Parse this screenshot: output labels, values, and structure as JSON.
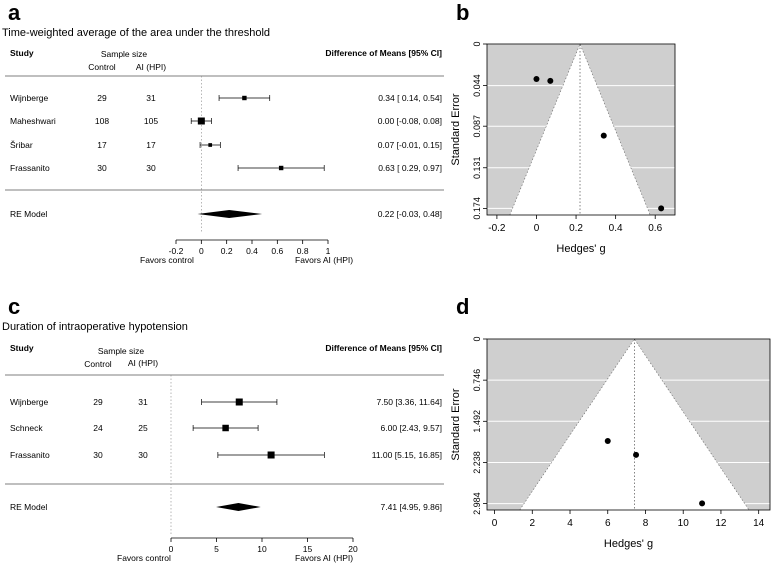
{
  "chart_data": [
    {
      "panel_label": "a",
      "type": "forest",
      "title": "Time-weighted average of the area under the threshold",
      "headers": {
        "study": "Study",
        "sample_size": "Sample size",
        "control": "Control",
        "ai": "AI (HPI)",
        "effect": "Difference of Means [95% CI]"
      },
      "studies": [
        {
          "name": "Wijnberge",
          "control": "29",
          "ai": "31",
          "estimate": 0.34,
          "lower": 0.14,
          "upper": 0.54,
          "ci_text": "0.34 [ 0.14, 0.54]"
        },
        {
          "name": "Maheshwari",
          "control": "108",
          "ai": "105",
          "estimate": 0.0,
          "lower": -0.08,
          "upper": 0.08,
          "ci_text": "0.00 [-0.08, 0.08]"
        },
        {
          "name": "Šribar",
          "control": "17",
          "ai": "17",
          "estimate": 0.07,
          "lower": -0.01,
          "upper": 0.15,
          "ci_text": "0.07 [-0.01, 0.15]"
        },
        {
          "name": "Frassanito",
          "control": "30",
          "ai": "30",
          "estimate": 0.63,
          "lower": 0.29,
          "upper": 0.97,
          "ci_text": "0.63 [ 0.29, 0.97]"
        }
      ],
      "re_model": {
        "name": "RE Model",
        "estimate": 0.22,
        "lower": -0.03,
        "upper": 0.48,
        "ci_text": "0.22 [-0.03, 0.48]"
      },
      "xlim": [
        -0.2,
        1.0
      ],
      "ticks": [
        "-0.2",
        "0",
        "0.2",
        "0.4",
        "0.6",
        "0.8",
        "1"
      ],
      "favors_left": "Favors control",
      "favors_right": "Favors AI (HPI)"
    },
    {
      "panel_label": "b",
      "type": "funnel",
      "xlabel": "Hedges' g",
      "ylabel": "Standard Error",
      "center": 0.22,
      "xlim": [
        -0.25,
        0.7
      ],
      "ylim": [
        0,
        0.181
      ],
      "x_ticks": [
        -0.2,
        0,
        0.2,
        0.4,
        0.6
      ],
      "y_ticks": [
        0,
        0.044,
        0.087,
        0.131,
        0.174
      ],
      "y_tick_labels": [
        "0",
        "0.044",
        "0.087",
        "0.131",
        "0.174"
      ],
      "points": [
        {
          "x": 0.0,
          "y": 0.037
        },
        {
          "x": 0.07,
          "y": 0.039
        },
        {
          "x": 0.34,
          "y": 0.097
        },
        {
          "x": 0.63,
          "y": 0.174
        }
      ]
    },
    {
      "panel_label": "c",
      "type": "forest",
      "title": "Duration of intraoperative hypotension",
      "headers": {
        "study": "Study",
        "sample_size": "Sample size",
        "control": "Control",
        "ai": "AI (HPI)",
        "effect": "Difference of Means [95% CI]"
      },
      "studies": [
        {
          "name": "Wijnberge",
          "control": "29",
          "ai": "31",
          "estimate": 7.5,
          "lower": 3.36,
          "upper": 11.64,
          "ci_text": "7.50 [3.36, 11.64]"
        },
        {
          "name": "Schneck",
          "control": "24",
          "ai": "25",
          "estimate": 6.0,
          "lower": 2.43,
          "upper": 9.57,
          "ci_text": "6.00 [2.43,  9.57]"
        },
        {
          "name": "Frassanito",
          "control": "30",
          "ai": "30",
          "estimate": 11.0,
          "lower": 5.15,
          "upper": 16.85,
          "ci_text": "11.00 [5.15, 16.85]"
        }
      ],
      "re_model": {
        "name": "RE Model",
        "estimate": 7.41,
        "lower": 4.95,
        "upper": 9.86,
        "ci_text": "7.41 [4.95,  9.86]"
      },
      "xlim": [
        0,
        20
      ],
      "ticks": [
        "0",
        "5",
        "10",
        "15",
        "20"
      ],
      "favors_left": "Favors control",
      "favors_right": "Favors AI (HPI)"
    },
    {
      "panel_label": "d",
      "type": "funnel",
      "xlabel": "Hedges' g",
      "ylabel": "Standard Error",
      "center": 7.41,
      "xlim": [
        -0.4,
        14.6
      ],
      "ylim": [
        0,
        3.1
      ],
      "x_ticks": [
        0,
        2,
        4,
        6,
        8,
        10,
        12,
        14
      ],
      "y_ticks": [
        0,
        0.746,
        1.492,
        2.238,
        2.984
      ],
      "y_tick_labels": [
        "0",
        "0.746",
        "1.492",
        "2.238",
        "2.984"
      ],
      "points": [
        {
          "x": 6.0,
          "y": 1.85
        },
        {
          "x": 7.5,
          "y": 2.1
        },
        {
          "x": 11.0,
          "y": 2.98
        }
      ]
    }
  ]
}
